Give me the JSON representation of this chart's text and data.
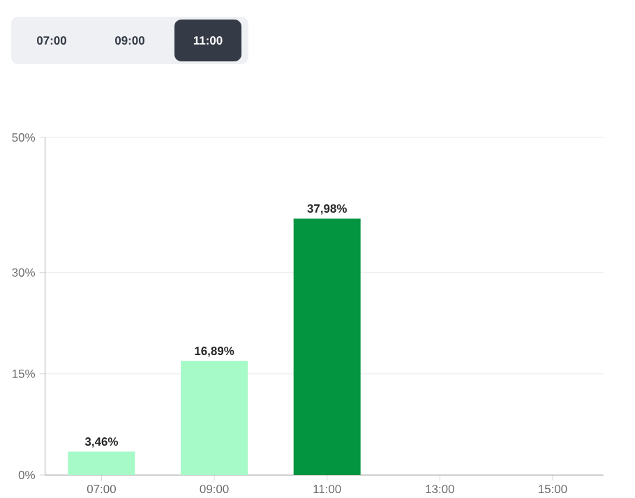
{
  "chart_data": {
    "type": "bar",
    "annotations": [
      "07:00",
      "09:00",
      "11:00"
    ],
    "categories": [
      "07:00",
      "09:00",
      "11:00",
      "13:00",
      "15:00"
    ],
    "values": [
      3.46,
      16.89,
      37.98,
      null,
      null
    ],
    "colors": [
      "#a6fac8",
      "#a6fac8",
      "#03953f",
      "#a6fac8",
      "#a6fac8"
    ],
    "value_labels": [
      "3,46%",
      "16,89%",
      "37,98%",
      null,
      null
    ],
    "ylim": [
      0,
      50
    ],
    "yticks": [
      {
        "value": 0,
        "label": "0%"
      },
      {
        "value": 15,
        "label": "15%"
      },
      {
        "value": 30,
        "label": "30%"
      },
      {
        "value": 50,
        "label": "50%"
      }
    ],
    "grid": "y"
  }
}
